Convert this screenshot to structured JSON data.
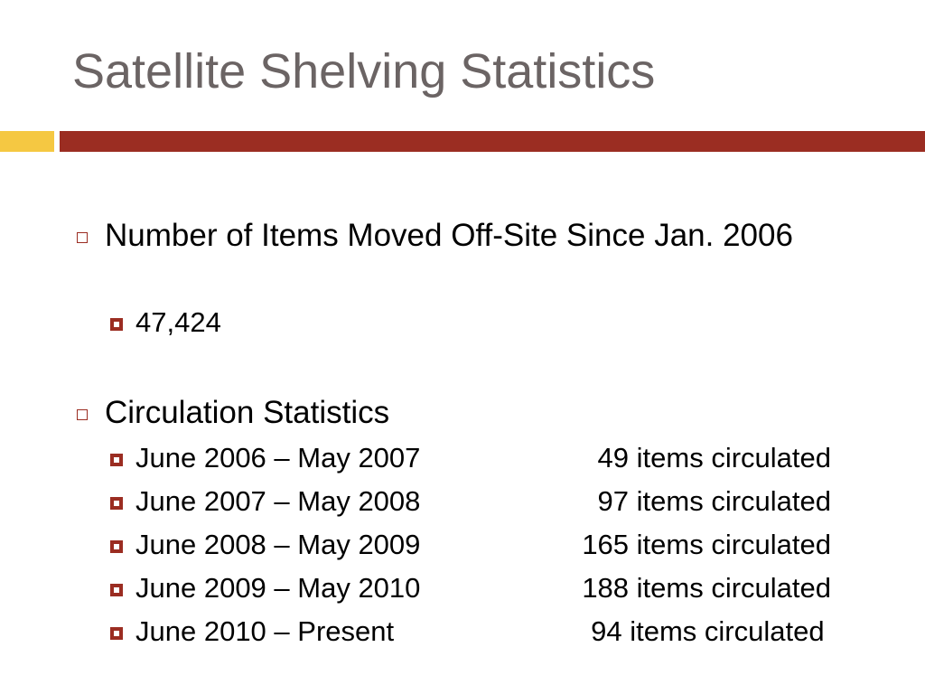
{
  "title": "Satellite Shelving Statistics",
  "bullets": [
    {
      "text": "Number of Items Moved Off-Site Since Jan. 2006",
      "items": [
        {
          "text": "47,424"
        }
      ]
    },
    {
      "text": "Circulation Statistics",
      "items": [
        {
          "period": "June 2006 – May 2007",
          "value": "49 items circulated"
        },
        {
          "period": "June 2007 – May 2008",
          "value": "97 items circulated"
        },
        {
          "period": "June 2008 – May 2009",
          "value": "165 items circulated"
        },
        {
          "period": "June 2009 – May 2010",
          "value": "188 items circulated"
        },
        {
          "period": "June 2010 – Present",
          "value": "94 items circulated"
        }
      ]
    }
  ]
}
